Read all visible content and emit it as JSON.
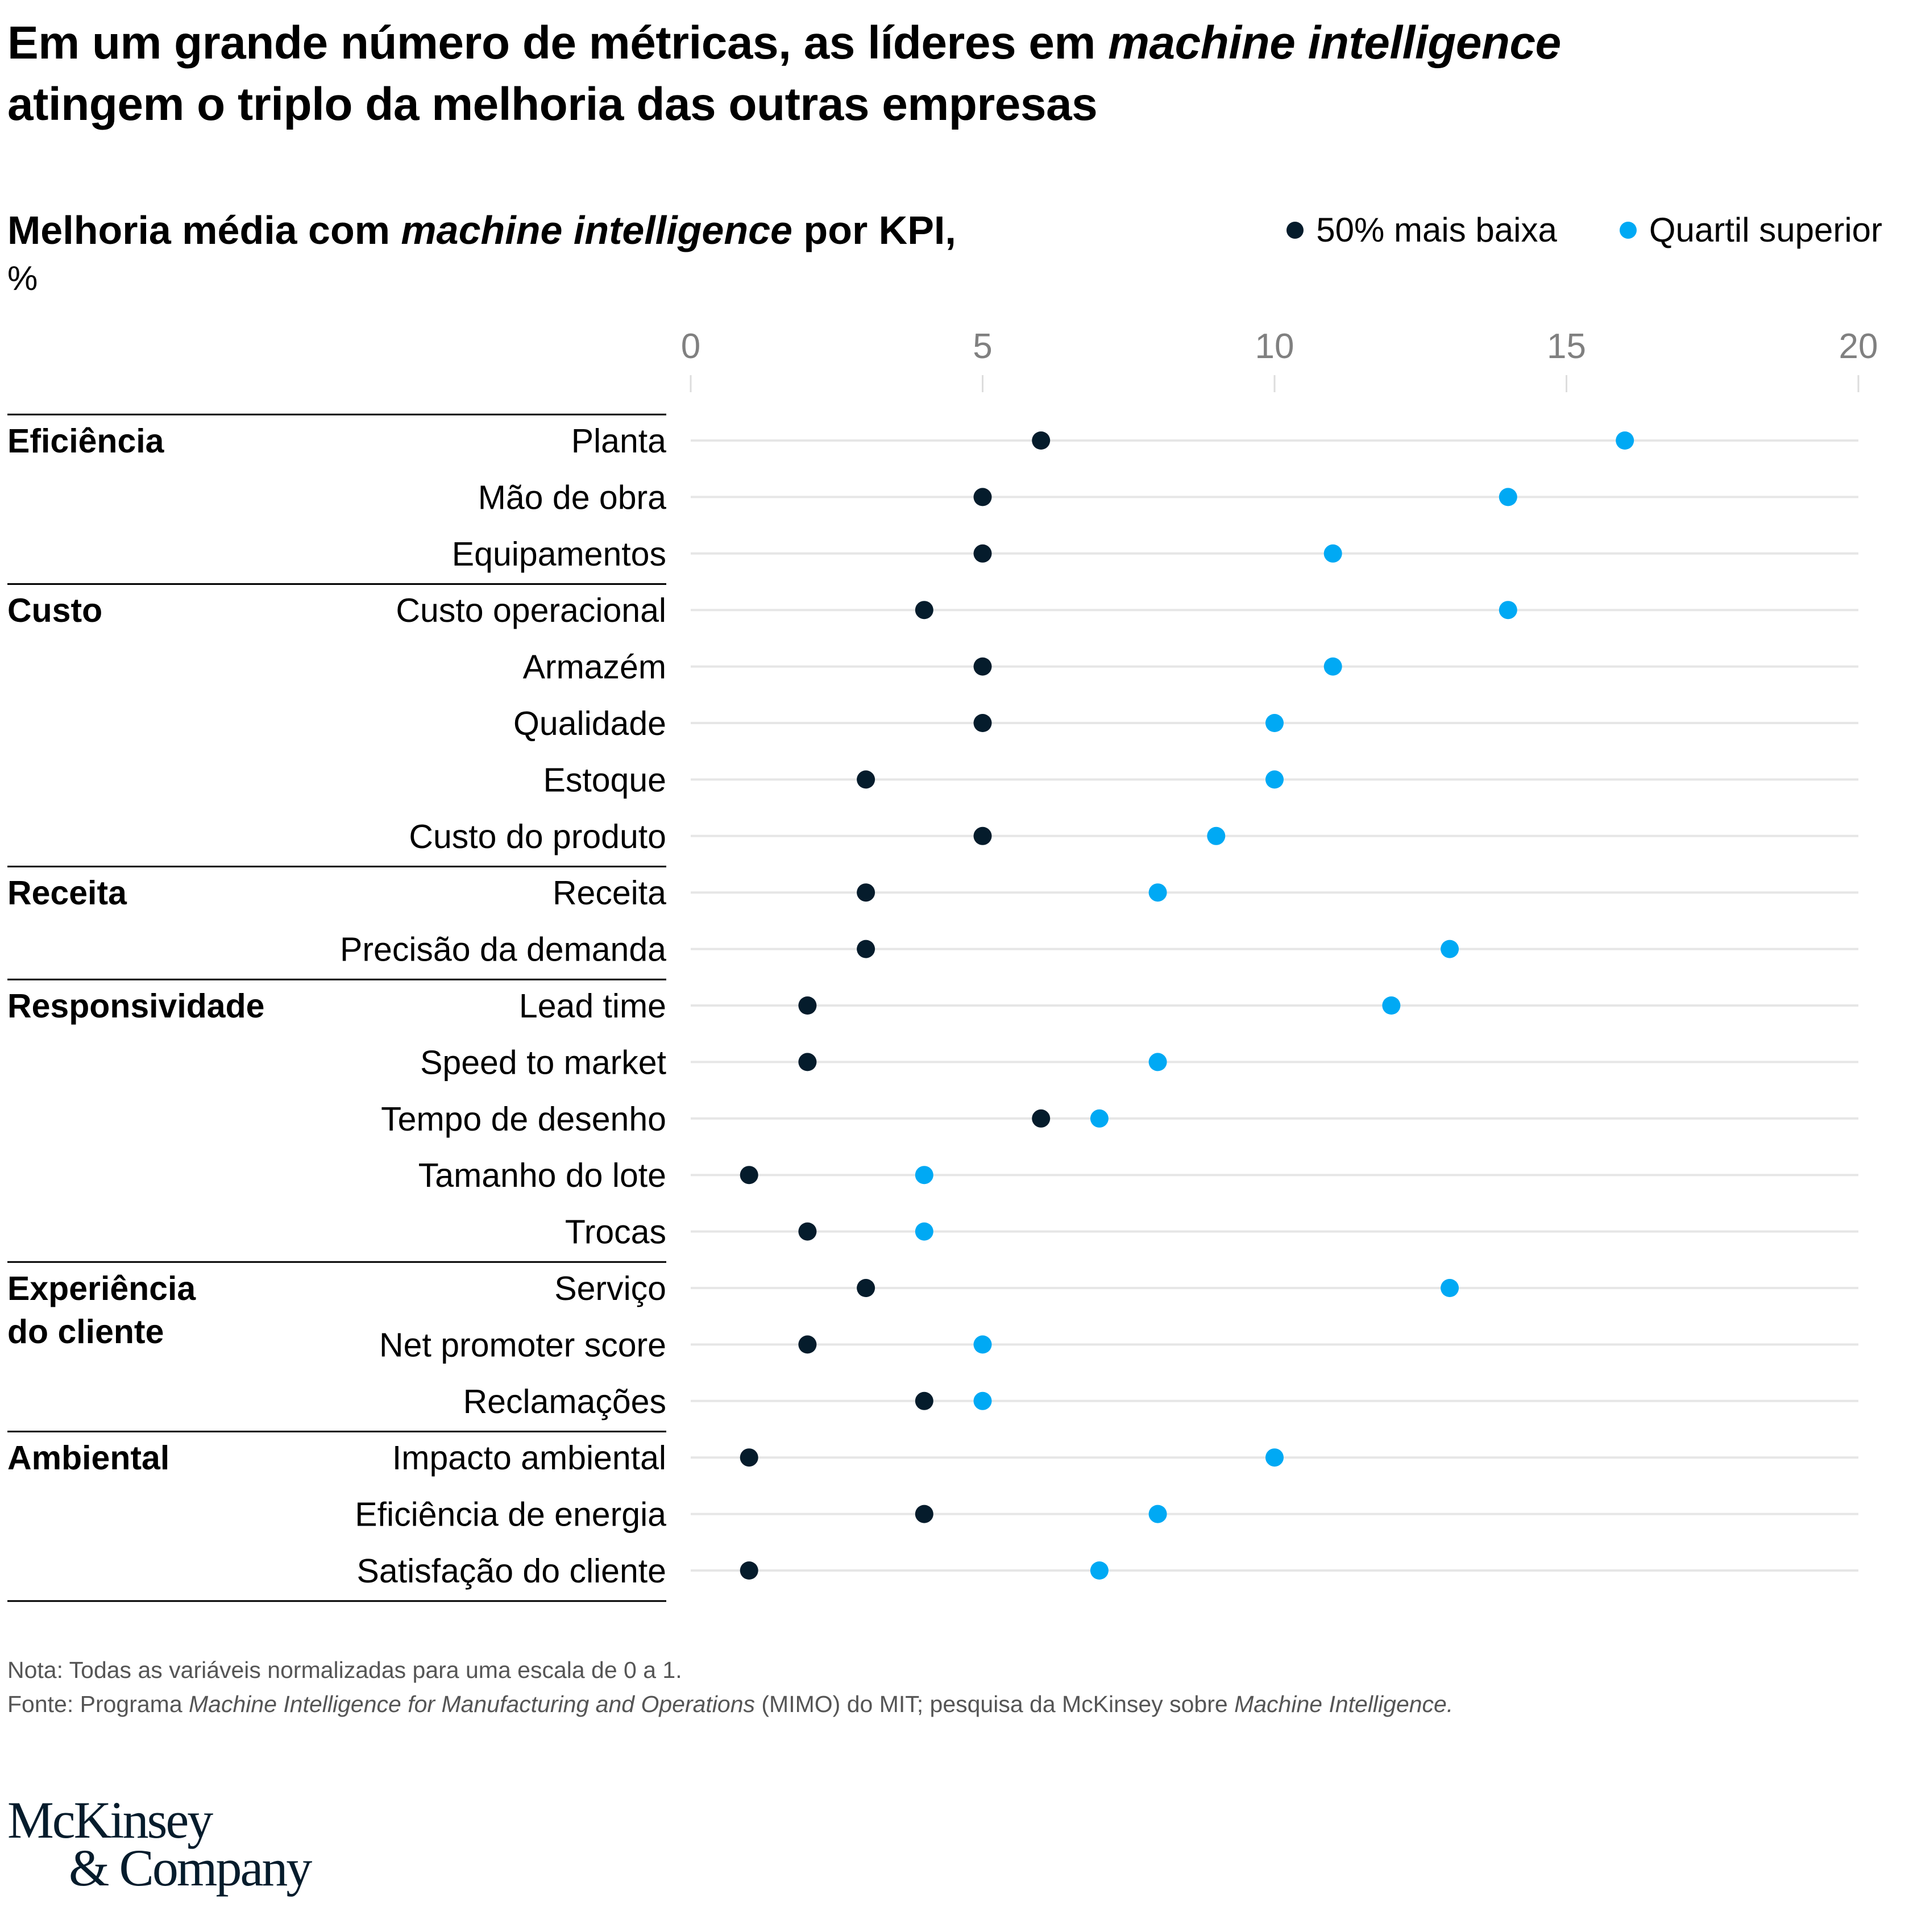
{
  "title": {
    "line1_a": "Em um grande número de métricas, as líderes em ",
    "line1_italic": "machine intelligence",
    "line2": "atingem o triplo da melhoria das outras empresas"
  },
  "subtitle": {
    "a": "Melhoria média com ",
    "italic": "machine intelligence",
    "b": " por KPI,",
    "unit": "%"
  },
  "legend": [
    {
      "label": "50% mais baixa",
      "color": "#051c2c"
    },
    {
      "label": "Quartil superior",
      "color": "#00a9f4"
    }
  ],
  "footnotes": {
    "note": "Nota: Todas as variáveis normalizadas para uma escala de 0 a 1.",
    "source_a": "Fonte: Programa ",
    "source_italic1": "Machine Intelligence for Manufacturing and Operations",
    "source_b": " (MIMO) do MIT; pesquisa da McKinsey sobre ",
    "source_italic2": "Machine Intelligence."
  },
  "logo": {
    "line1": "McKinsey",
    "line2": "& Company"
  },
  "chart_data": {
    "type": "scatter",
    "subtype": "dot-plot",
    "title": "Melhoria média com machine intelligence por KPI, %",
    "xlabel": "",
    "ylabel": "",
    "xlim": [
      0,
      20
    ],
    "xticks": [
      0,
      5,
      10,
      15,
      20
    ],
    "grid": true,
    "legend_position": "top-right",
    "groups": [
      {
        "name": "Eficiência",
        "kpis": [
          "Planta",
          "Mão de obra",
          "Equipamentos"
        ]
      },
      {
        "name": "Custo",
        "kpis": [
          "Custo operacional",
          "Armazém",
          "Qualidade",
          "Estoque",
          "Custo do produto"
        ]
      },
      {
        "name": "Receita",
        "kpis": [
          "Receita",
          "Precisão da demanda"
        ]
      },
      {
        "name": "Responsividade",
        "kpis": [
          "Lead time",
          "Speed to market",
          "Tempo de desenho",
          "Tamanho do lote",
          "Trocas"
        ]
      },
      {
        "name": "Experiência do cliente",
        "name_lines": [
          "Experiência",
          "do cliente"
        ],
        "kpis": [
          "Serviço",
          "Net promoter score",
          "Reclamações"
        ]
      },
      {
        "name": "Ambiental",
        "kpis": [
          "Impacto ambiental",
          "Eficiência de energia",
          "Satisfação do cliente"
        ]
      }
    ],
    "categories": [
      "Planta",
      "Mão de obra",
      "Equipamentos",
      "Custo operacional",
      "Armazém",
      "Qualidade",
      "Estoque",
      "Custo do produto",
      "Receita",
      "Precisão da demanda",
      "Lead time",
      "Speed to market",
      "Tempo de desenho",
      "Tamanho do lote",
      "Trocas",
      "Serviço",
      "Net promoter score",
      "Reclamações",
      "Impacto ambiental",
      "Eficiência de energia",
      "Satisfação do cliente"
    ],
    "series": [
      {
        "name": "50% mais baixa",
        "color": "#051c2c",
        "values": [
          6,
          5,
          5,
          4,
          5,
          5,
          3,
          5,
          3,
          3,
          2,
          2,
          6,
          1,
          2,
          3,
          2,
          4,
          1,
          4,
          1
        ]
      },
      {
        "name": "Quartil superior",
        "color": "#00a9f4",
        "values": [
          16,
          14,
          11,
          14,
          11,
          10,
          10,
          9,
          8,
          13,
          12,
          8,
          7,
          4,
          4,
          13,
          5,
          5,
          10,
          8,
          7
        ]
      }
    ]
  }
}
